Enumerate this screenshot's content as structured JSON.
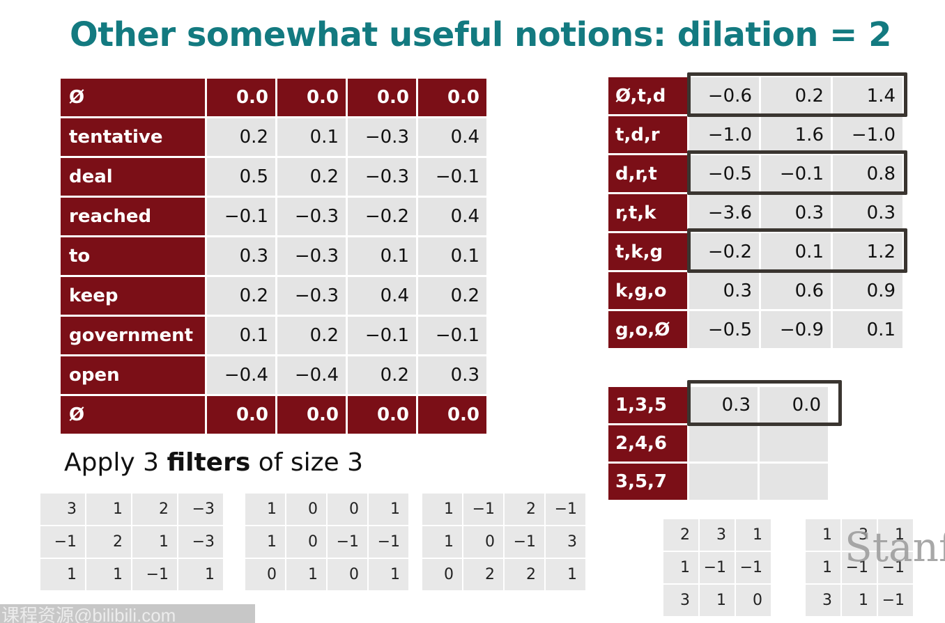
{
  "title": "Other somewhat useful notions: dilation = 2",
  "subtitle": {
    "prefix": "Apply 3 ",
    "bold": "filters",
    "suffix": " of size 3"
  },
  "embedding_table": {
    "rows": [
      {
        "label": "Ø",
        "values": [
          "0.0",
          "0.0",
          "0.0",
          "0.0"
        ],
        "padding": true
      },
      {
        "label": "tentative",
        "values": [
          "0.2",
          "0.1",
          "−0.3",
          "0.4"
        ]
      },
      {
        "label": "deal",
        "values": [
          "0.5",
          "0.2",
          "−0.3",
          "−0.1"
        ]
      },
      {
        "label": "reached",
        "values": [
          "−0.1",
          "−0.3",
          "−0.2",
          "0.4"
        ]
      },
      {
        "label": "to",
        "values": [
          "0.3",
          "−0.3",
          "0.1",
          "0.1"
        ]
      },
      {
        "label": "keep",
        "values": [
          "0.2",
          "−0.3",
          "0.4",
          "0.2"
        ]
      },
      {
        "label": "government",
        "values": [
          "0.1",
          "0.2",
          "−0.1",
          "−0.1"
        ]
      },
      {
        "label": "open",
        "values": [
          "−0.4",
          "−0.4",
          "0.2",
          "0.3"
        ]
      },
      {
        "label": "Ø",
        "values": [
          "0.0",
          "0.0",
          "0.0",
          "0.0"
        ],
        "padding": true
      }
    ]
  },
  "conv_table": {
    "rows": [
      {
        "label": "Ø,t,d",
        "values": [
          "−0.6",
          "0.2",
          "1.4"
        ]
      },
      {
        "label": "t,d,r",
        "values": [
          "−1.0",
          "1.6",
          "−1.0"
        ]
      },
      {
        "label": "d,r,t",
        "values": [
          "−0.5",
          "−0.1",
          "0.8"
        ]
      },
      {
        "label": "r,t,k",
        "values": [
          "−3.6",
          "0.3",
          "0.3"
        ]
      },
      {
        "label": "t,k,g",
        "values": [
          "−0.2",
          "0.1",
          "1.2"
        ]
      },
      {
        "label": "k,g,o",
        "values": [
          "0.3",
          "0.6",
          "0.9"
        ]
      },
      {
        "label": "g,o,Ø",
        "values": [
          "−0.5",
          "−0.9",
          "0.1"
        ]
      }
    ]
  },
  "dilated_table": {
    "rows": [
      {
        "label": "1,3,5",
        "values": [
          "0.3",
          "0.0"
        ]
      },
      {
        "label": "2,4,6",
        "values": [
          "",
          ""
        ]
      },
      {
        "label": "3,5,7",
        "values": [
          "",
          ""
        ]
      }
    ]
  },
  "filters": [
    [
      [
        "3",
        "1",
        "2",
        "−3"
      ],
      [
        "−1",
        "2",
        "1",
        "−3"
      ],
      [
        "1",
        "1",
        "−1",
        "1"
      ]
    ],
    [
      [
        "1",
        "0",
        "0",
        "1"
      ],
      [
        "1",
        "0",
        "−1",
        "−1"
      ],
      [
        "0",
        "1",
        "0",
        "1"
      ]
    ],
    [
      [
        "1",
        "−1",
        "2",
        "−1"
      ],
      [
        "1",
        "0",
        "−1",
        "3"
      ],
      [
        "0",
        "2",
        "2",
        "1"
      ]
    ]
  ],
  "dilated_filters": [
    [
      [
        "2",
        "3",
        "1"
      ],
      [
        "1",
        "−1",
        "−1"
      ],
      [
        "3",
        "1",
        "0"
      ]
    ],
    [
      [
        "1",
        "3",
        "1"
      ],
      [
        "1",
        "−1",
        "−1"
      ],
      [
        "3",
        "1",
        "−1"
      ]
    ]
  ],
  "logo_text": "Stanford",
  "watermark": "课程资源@bilibili.com"
}
